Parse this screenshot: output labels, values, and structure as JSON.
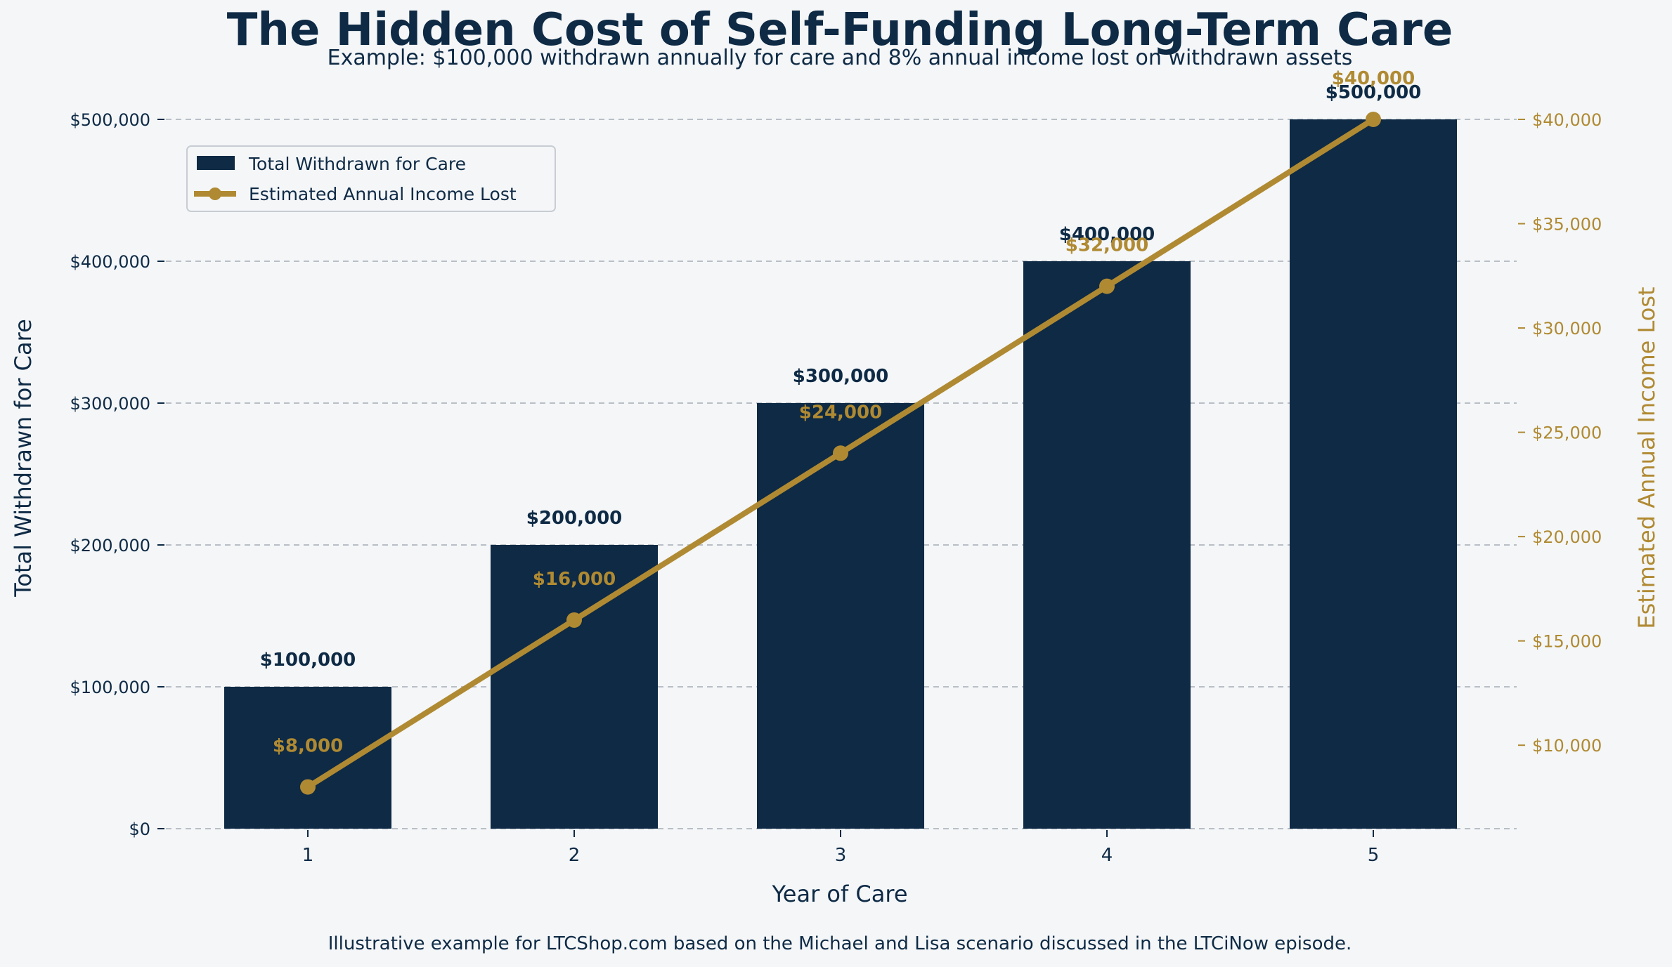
{
  "chart_data": {
    "type": "bar",
    "title": "The Hidden Cost of Self-Funding Long-Term Care",
    "subtitle": "Example: $100,000 withdrawn annually for care and 8% annual income lost on withdrawn assets",
    "footnote": "Illustrative example for LTCShop.com based on the Michael and Lisa scenario discussed in the LTCiNow episode.",
    "xlabel": "Year of Care",
    "ylabel": "Total Withdrawn for Care",
    "y2label": "Estimated Annual Income Lost",
    "categories": [
      "1",
      "2",
      "3",
      "4",
      "5"
    ],
    "ylim": [
      0,
      500000
    ],
    "y2lim": [
      6000,
      40000
    ],
    "yticks": [
      0,
      100000,
      200000,
      300000,
      400000,
      500000
    ],
    "y2ticks": [
      10000,
      15000,
      20000,
      25000,
      30000,
      35000,
      40000
    ],
    "ytick_labels": [
      "$0",
      "$100,000",
      "$200,000",
      "$300,000",
      "$400,000",
      "$500,000"
    ],
    "y2tick_labels": [
      "$10,000",
      "$15,000",
      "$20,000",
      "$25,000",
      "$30,000",
      "$35,000",
      "$40,000"
    ],
    "grid": "horizontal dashed",
    "legend_position": "upper-left",
    "series": [
      {
        "name": "Total Withdrawn for Care",
        "type": "bar",
        "axis": "left",
        "color": "#0e2a45",
        "values": [
          100000,
          200000,
          300000,
          400000,
          500000
        ],
        "labels": [
          "$100,000",
          "$200,000",
          "$300,000",
          "$400,000",
          "$500,000"
        ]
      },
      {
        "name": "Estimated Annual Income Lost",
        "type": "line",
        "axis": "right",
        "color": "#b08a32",
        "values": [
          8000,
          16000,
          24000,
          32000,
          40000
        ],
        "labels": [
          "$8,000",
          "$16,000",
          "$24,000",
          "$32,000",
          "$40,000"
        ]
      }
    ]
  }
}
